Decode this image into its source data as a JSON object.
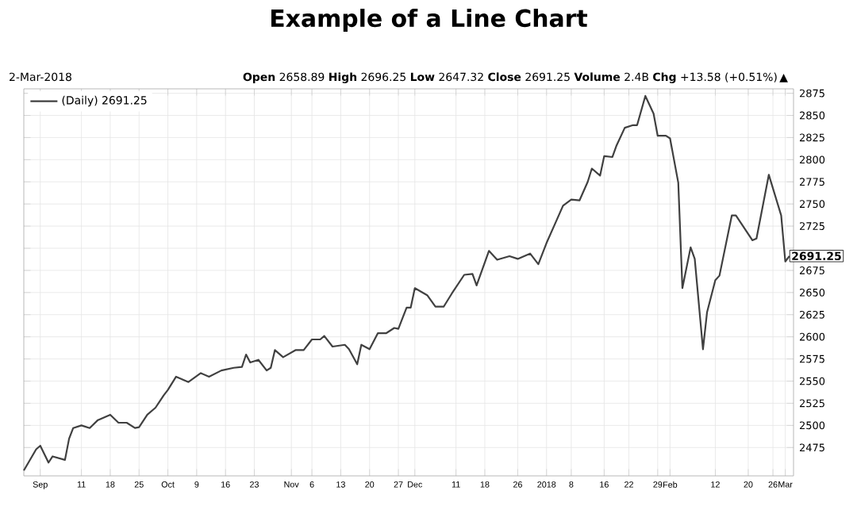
{
  "chart_data": {
    "type": "line",
    "title": "Example of a Line Chart",
    "annotations": [
      "2-Mar-2018",
      "**Open** 2658.89 **High** 2696.25 **Low** 2647.32 **Close** 2691.25 **Volume** 2.4B **Chg** +13.58 (+0.51%)",
      "▲",
      {
        "text": "2691.25",
        "x": "2018-03-02",
        "y": 2691.25
      }
    ],
    "x": [
      "2017-08-28",
      "2017-08-31",
      "2017-09-01",
      "2017-09-03",
      "2017-09-04",
      "2017-09-07",
      "2017-09-08",
      "2017-09-09",
      "2017-09-11",
      "2017-09-13",
      "2017-09-15",
      "2017-09-18",
      "2017-09-20",
      "2017-09-22",
      "2017-09-24",
      "2017-09-25",
      "2017-09-27",
      "2017-09-29",
      "2017-10-01",
      "2017-10-02",
      "2017-10-04",
      "2017-10-07",
      "2017-10-10",
      "2017-10-12",
      "2017-10-15",
      "2017-10-18",
      "2017-10-20",
      "2017-10-21",
      "2017-10-22",
      "2017-10-24",
      "2017-10-26",
      "2017-10-27",
      "2017-10-28",
      "2017-10-30",
      "2017-11-02",
      "2017-11-04",
      "2017-11-06",
      "2017-11-08",
      "2017-11-09",
      "2017-11-11",
      "2017-11-14",
      "2017-11-15",
      "2017-11-17",
      "2017-11-18",
      "2017-11-20",
      "2017-11-22",
      "2017-11-24",
      "2017-11-26",
      "2017-11-27",
      "2017-11-29",
      "2017-11-30",
      "2017-12-01",
      "2017-12-04",
      "2017-12-06",
      "2017-12-08",
      "2017-12-10",
      "2017-12-13",
      "2017-12-15",
      "2017-12-16",
      "2017-12-19",
      "2017-12-21",
      "2017-12-24",
      "2017-12-26",
      "2017-12-29",
      "2017-12-31",
      "2018-01-02",
      "2018-01-04",
      "2018-01-06",
      "2018-01-08",
      "2018-01-10",
      "2018-01-12",
      "2018-01-13",
      "2018-01-15",
      "2018-01-16",
      "2018-01-18",
      "2018-01-19",
      "2018-01-21",
      "2018-01-23",
      "2018-01-24",
      "2018-01-26",
      "2018-01-28",
      "2018-01-29",
      "2018-01-31",
      "2018-02-01",
      "2018-02-03",
      "2018-02-04",
      "2018-02-06",
      "2018-02-07",
      "2018-02-09",
      "2018-02-10",
      "2018-02-12",
      "2018-02-13",
      "2018-02-16",
      "2018-02-17",
      "2018-02-21",
      "2018-02-22",
      "2018-02-25",
      "2018-02-28",
      "2018-03-01",
      "2018-03-02"
    ],
    "series": [
      {
        "name": "(Daily) 2691.25",
        "color": "#404040",
        "values": [
          2449,
          2473,
          2477,
          2458,
          2465,
          2461,
          2485,
          2497,
          2500,
          2497,
          2506,
          2512,
          2503,
          2503,
          2497,
          2498,
          2512,
          2520,
          2534,
          2540,
          2555,
          2549,
          2559,
          2555,
          2562,
          2565,
          2566,
          2580,
          2571,
          2574,
          2562,
          2565,
          2585,
          2577,
          2585,
          2585,
          2597,
          2597,
          2601,
          2589,
          2591,
          2586,
          2569,
          2591,
          2586,
          2604,
          2604,
          2610,
          2609,
          2633,
          2633,
          2655,
          2647,
          2634,
          2634,
          2649,
          2670,
          2671,
          2658,
          2697,
          2687,
          2691,
          2688,
          2694,
          2682,
          2706,
          2727,
          2748,
          2755,
          2754,
          2775,
          2790,
          2782,
          2804,
          2803,
          2816,
          2836,
          2839,
          2839,
          2872,
          2852,
          2827,
          2827,
          2824,
          2774,
          2655,
          2701,
          2688,
          2586,
          2628,
          2664,
          2669,
          2737,
          2737,
          2709,
          2711,
          2783,
          2737,
          2685,
          2691.25
        ]
      }
    ],
    "xlim": [
      "2017-08-28",
      "2018-03-03"
    ],
    "xticks": [
      {
        "value": "2017-09-01",
        "label": "Sep"
      },
      {
        "value": "2017-09-11",
        "label": "11"
      },
      {
        "value": "2017-09-18",
        "label": "18"
      },
      {
        "value": "2017-09-25",
        "label": "25"
      },
      {
        "value": "2017-10-02",
        "label": "Oct"
      },
      {
        "value": "2017-10-09",
        "label": "9"
      },
      {
        "value": "2017-10-16",
        "label": "16"
      },
      {
        "value": "2017-10-23",
        "label": "23"
      },
      {
        "value": "2017-11-01",
        "label": "Nov"
      },
      {
        "value": "2017-11-06",
        "label": "6"
      },
      {
        "value": "2017-11-13",
        "label": "13"
      },
      {
        "value": "2017-11-20",
        "label": "20"
      },
      {
        "value": "2017-11-27",
        "label": "27"
      },
      {
        "value": "2017-12-01",
        "label": "Dec"
      },
      {
        "value": "2017-12-11",
        "label": "11"
      },
      {
        "value": "2017-12-18",
        "label": "18"
      },
      {
        "value": "2017-12-26",
        "label": "26"
      },
      {
        "value": "2018-01-02",
        "label": "2018"
      },
      {
        "value": "2018-01-08",
        "label": "8"
      },
      {
        "value": "2018-01-16",
        "label": "16"
      },
      {
        "value": "2018-01-22",
        "label": "22"
      },
      {
        "value": "2018-01-29",
        "label": "29"
      },
      {
        "value": "2018-02-01",
        "label": "Feb"
      },
      {
        "value": "2018-02-12",
        "label": "12"
      },
      {
        "value": "2018-02-20",
        "label": "20"
      },
      {
        "value": "2018-02-26",
        "label": "26"
      },
      {
        "value": "2018-03-01",
        "label": "Mar"
      }
    ],
    "ylim": [
      2443,
      2880
    ],
    "yticks": [
      2475,
      2500,
      2525,
      2550,
      2575,
      2600,
      2625,
      2650,
      2675,
      {
        "value": 2700,
        "label": null
      },
      2725,
      2750,
      2775,
      2800,
      2825,
      2850,
      2875
    ],
    "grid": true,
    "legend": "top left"
  }
}
